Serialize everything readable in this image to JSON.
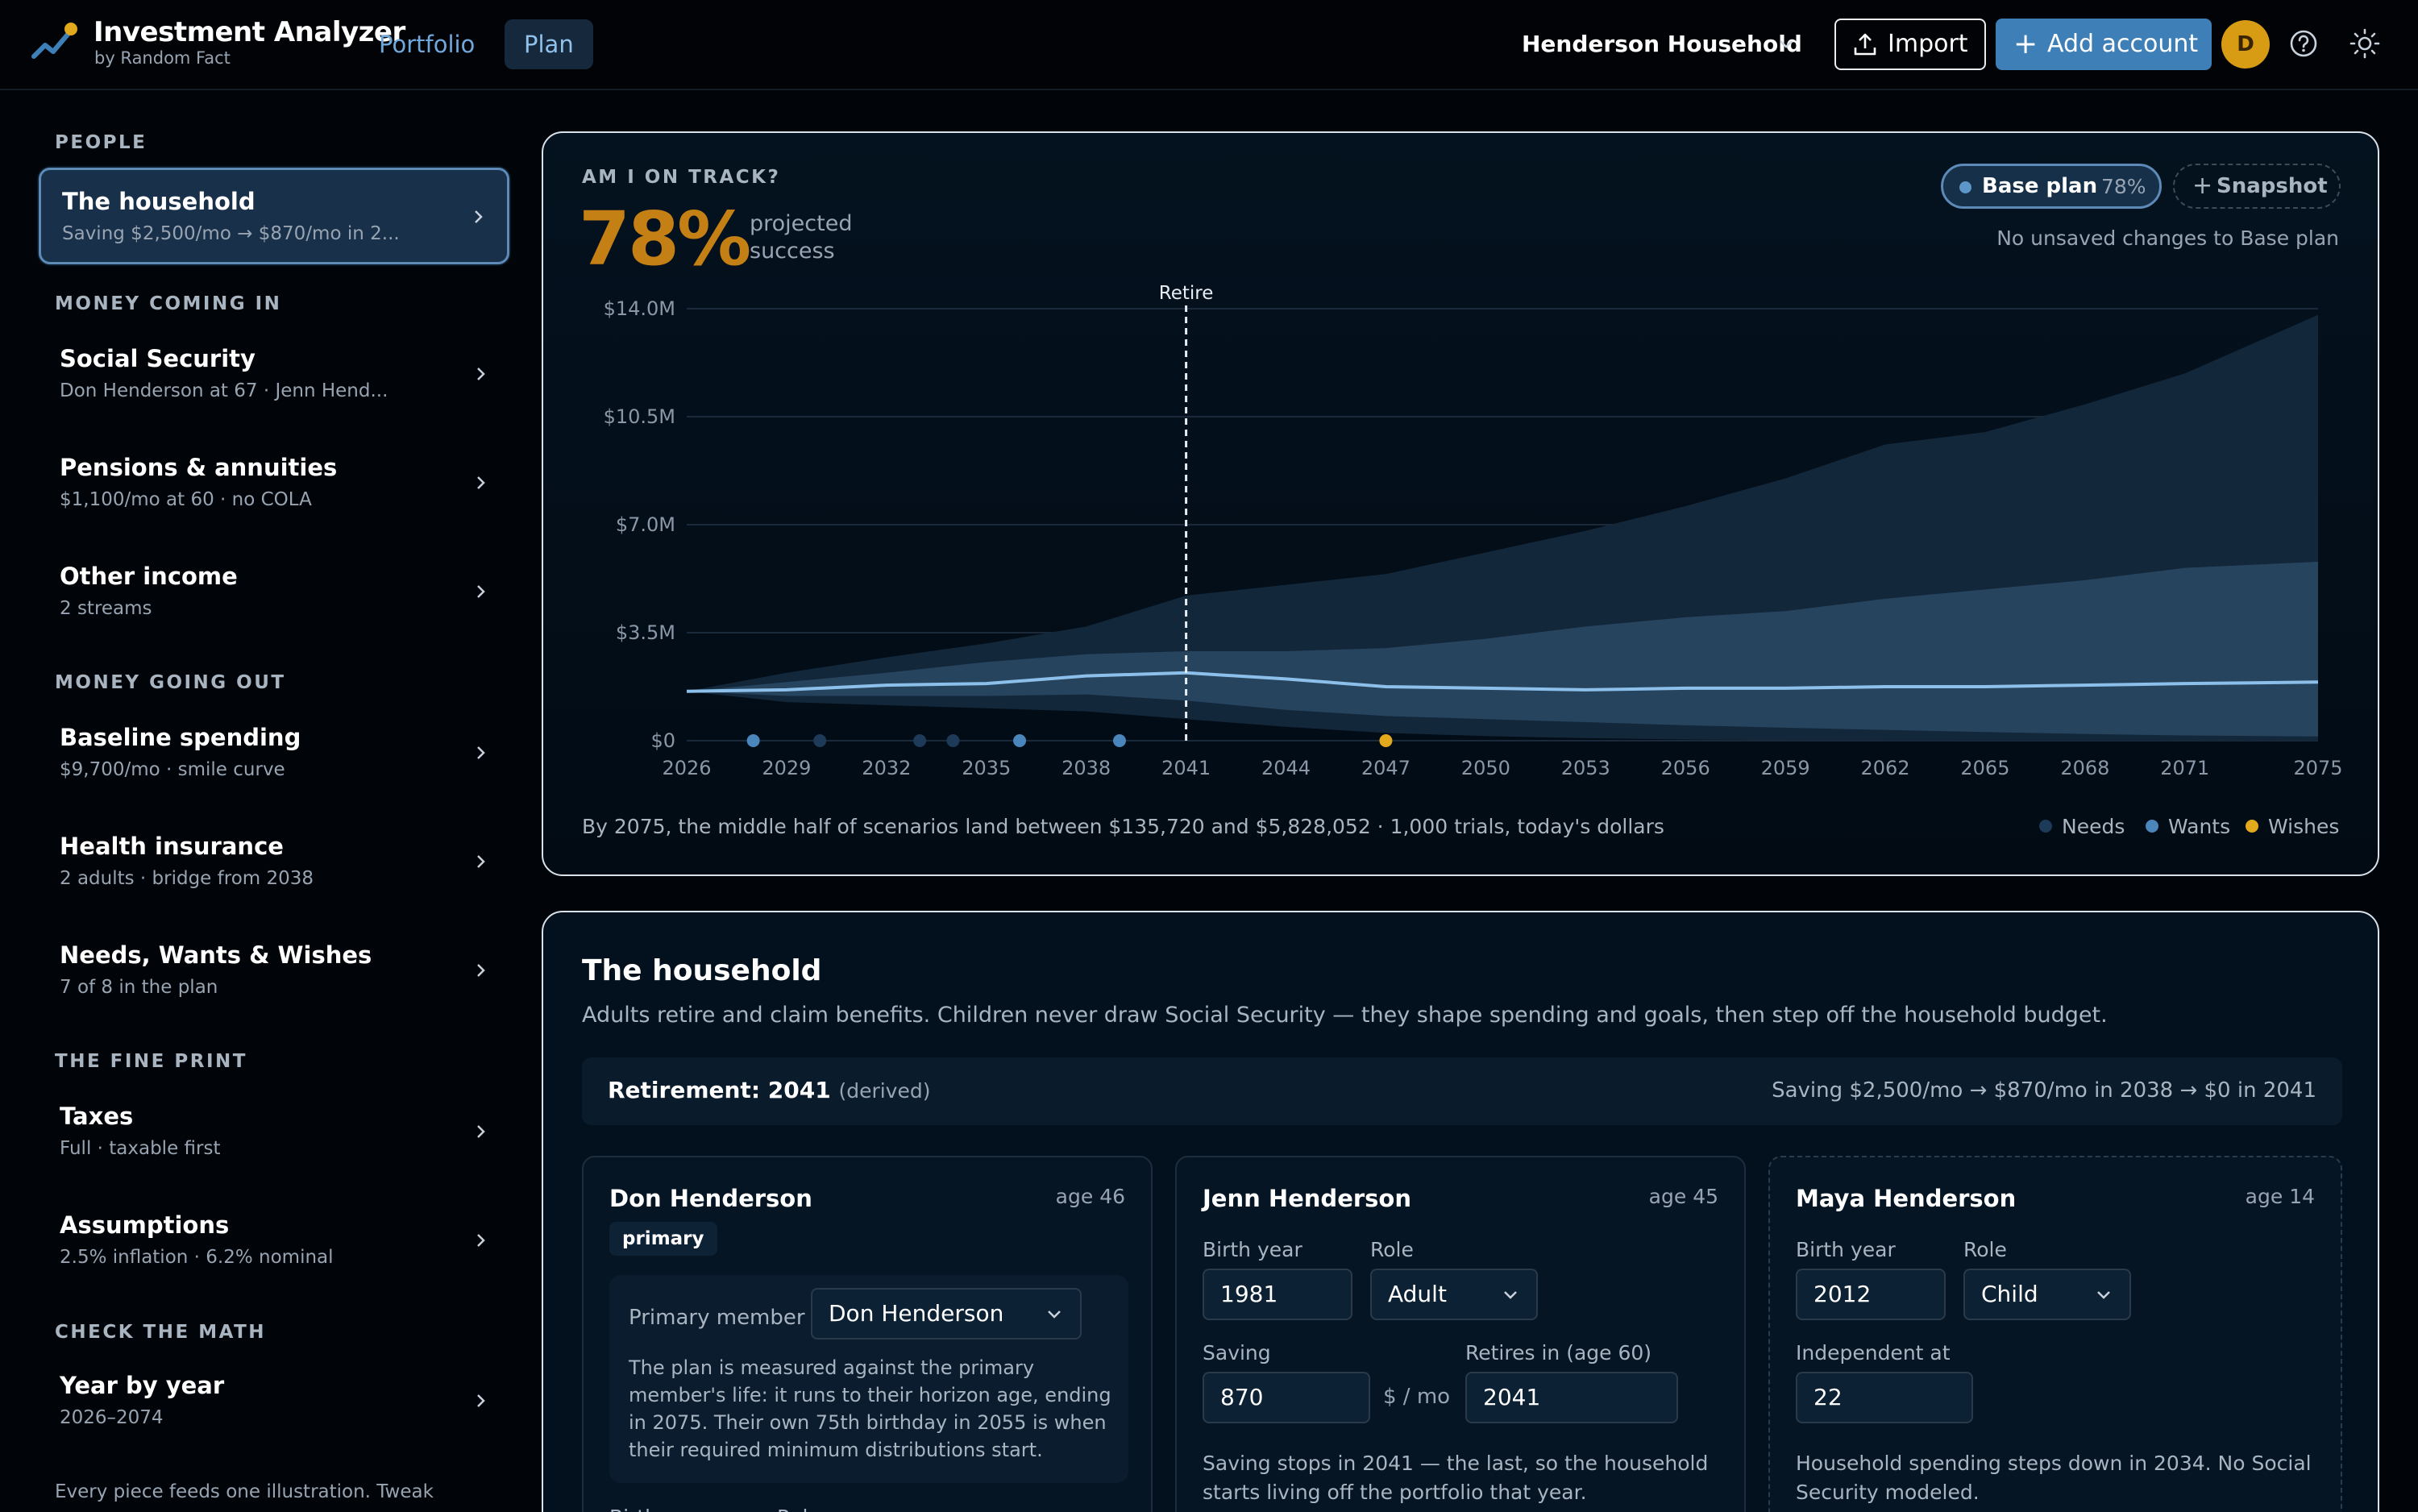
{
  "header": {
    "brand_title": "Investment Analyzer",
    "brand_sub": "by Random Fact",
    "tabs": [
      {
        "label": "Portfolio"
      },
      {
        "label": "Plan"
      }
    ],
    "household": "Henderson Household",
    "import_label": "Import",
    "add_label": "Add account",
    "avatar_initial": "D",
    "colors": {
      "accent": "#3d7fb6",
      "avatar": "#d79b14"
    }
  },
  "sidebar": {
    "sections": [
      {
        "label": "PEOPLE"
      },
      {
        "label": "MONEY COMING IN"
      },
      {
        "label": "MONEY GOING OUT"
      },
      {
        "label": "THE FINE PRINT"
      },
      {
        "label": "CHECK THE MATH"
      }
    ],
    "items": [
      {
        "title": "The household",
        "sub": "Saving $2,500/mo → $870/mo in 2..."
      },
      {
        "title": "Social Security",
        "sub": "Don Henderson at 67 · Jenn Hend..."
      },
      {
        "title": "Pensions & annuities",
        "sub": "$1,100/mo at 60 · no COLA"
      },
      {
        "title": "Other income",
        "sub": "2 streams"
      },
      {
        "title": "Baseline spending",
        "sub": "$9,700/mo · smile curve"
      },
      {
        "title": "Health insurance",
        "sub": "2 adults · bridge from 2038"
      },
      {
        "title": "Needs, Wants & Wishes",
        "sub": "7 of 8 in the plan"
      },
      {
        "title": "Taxes",
        "sub": "Full · taxable first"
      },
      {
        "title": "Assumptions",
        "sub": "2.5% inflation · 6.2% nominal"
      },
      {
        "title": "Year by year",
        "sub": "2026–2074"
      }
    ],
    "footer": "Every piece feeds one illustration. Tweak"
  },
  "track": {
    "label": "AM I ON TRACK?",
    "pct": "78%",
    "projected": "projected success",
    "base_label": "Base plan",
    "base_pct": "78%",
    "snapshot_label": "Snapshot",
    "no_unsaved": "No unsaved changes to Base plan",
    "footer": "By 2075, the middle half of scenarios land between $135,720 and $5,828,052 · 1,000 trials, today's dollars",
    "legend": [
      {
        "label": "Needs",
        "color": "#1d3a58"
      },
      {
        "label": "Wants",
        "color": "#4a85bb"
      },
      {
        "label": "Wishes",
        "color": "#e3a91c"
      }
    ]
  },
  "chart_data": {
    "type": "area",
    "x_ticks": [
      "2026",
      "2029",
      "2032",
      "2035",
      "2038",
      "2041",
      "2044",
      "2047",
      "2050",
      "2053",
      "2056",
      "2059",
      "2062",
      "2065",
      "2068",
      "2071",
      "2075"
    ],
    "y_ticks": [
      "$0",
      "$3.5M",
      "$7.0M",
      "$10.5M",
      "$14.0M"
    ],
    "ylim": [
      0,
      14000000
    ],
    "xlim": [
      2026,
      2075
    ],
    "annotation": {
      "x": 2041,
      "label": "Retire"
    },
    "years": [
      2026,
      2029,
      2032,
      2035,
      2038,
      2041,
      2044,
      2047,
      2050,
      2053,
      2056,
      2059,
      2062,
      2065,
      2068,
      2071,
      2075
    ],
    "series": [
      {
        "name": "p95",
        "values": [
          1600000,
          2200000,
          2700000,
          3150000,
          3700000,
          4700000,
          5050000,
          5400000,
          6100000,
          6800000,
          7600000,
          8500000,
          9600000,
          10000000,
          10900000,
          11900000,
          13800000
        ]
      },
      {
        "name": "p75",
        "values": [
          1600000,
          1900000,
          2200000,
          2550000,
          2800000,
          2900000,
          2900000,
          3000000,
          3300000,
          3700000,
          4000000,
          4200000,
          4600000,
          4900000,
          5200000,
          5600000,
          5800000
        ]
      },
      {
        "name": "median",
        "values": [
          1600000,
          1650000,
          1800000,
          1850000,
          2100000,
          2200000,
          2000000,
          1750000,
          1700000,
          1650000,
          1700000,
          1700000,
          1750000,
          1750000,
          1800000,
          1850000,
          1900000
        ]
      },
      {
        "name": "p25",
        "values": [
          1600000,
          1450000,
          1450000,
          1450000,
          1500000,
          1300000,
          1000000,
          800000,
          700000,
          600000,
          500000,
          420000,
          350000,
          280000,
          220000,
          170000,
          136000
        ]
      },
      {
        "name": "p5",
        "values": [
          1600000,
          1250000,
          1150000,
          1050000,
          950000,
          700000,
          450000,
          250000,
          150000,
          80000,
          40000,
          20000,
          10000,
          0,
          0,
          0,
          0
        ]
      }
    ],
    "goals": [
      {
        "year": 2028,
        "kind": "Wants"
      },
      {
        "year": 2030,
        "kind": "Needs"
      },
      {
        "year": 2033,
        "kind": "Needs"
      },
      {
        "year": 2034,
        "kind": "Needs"
      },
      {
        "year": 2036,
        "kind": "Wants"
      },
      {
        "year": 2039,
        "kind": "Wants"
      },
      {
        "year": 2047,
        "kind": "Wishes"
      }
    ],
    "grid": true
  },
  "household": {
    "title": "The household",
    "desc": "Adults retire and claim benefits. Children never draw Social Security — they shape spending and goals, then step off the household budget.",
    "retirement_label": "Retirement: 2041",
    "retirement_derived": "(derived)",
    "saving_summary": "Saving $2,500/mo → $870/mo in 2038 → $0 in 2041",
    "people": [
      {
        "name": "Don Henderson",
        "age": "age 46",
        "badge": "primary",
        "primary_label": "Primary member",
        "primary_value": "Don Henderson",
        "primary_note": "The plan is measured against the primary member's life: it runs to their horizon age, ending in 2075. Their own 75th birthday in 2055 is when their required minimum distributions start.",
        "cut_birth": "Birth year",
        "cut_role": "Role"
      },
      {
        "name": "Jenn Henderson",
        "age": "age 45",
        "birth_label": "Birth year",
        "birth_value": "1981",
        "role_label": "Role",
        "role_value": "Adult",
        "saving_label": "Saving",
        "saving_value": "870",
        "saving_unit": "$ / mo",
        "retires_label": "Retires in (age 60)",
        "retires_value": "2041",
        "note": "Saving stops in 2041 — the last, so the household starts living off the portfolio that year."
      },
      {
        "name": "Maya Henderson",
        "age": "age 14",
        "birth_label": "Birth year",
        "birth_value": "2012",
        "role_label": "Role",
        "role_value": "Child",
        "indep_label": "Independent at",
        "indep_value": "22",
        "note": "Household spending steps down in 2034. No Social Security modeled."
      }
    ]
  }
}
